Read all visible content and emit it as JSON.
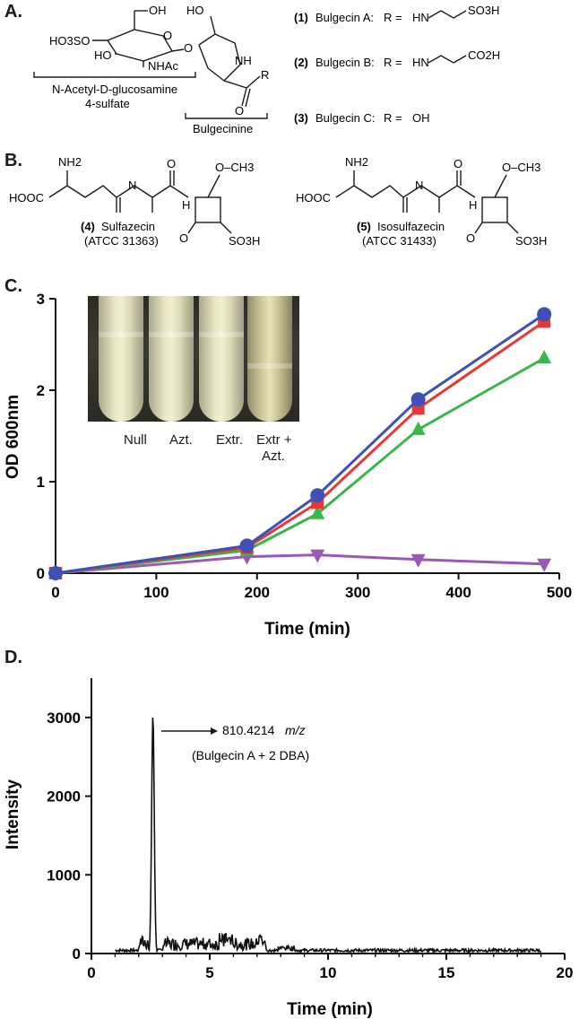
{
  "panels": {
    "a": "A.",
    "b": "B.",
    "c": "C.",
    "d": "D."
  },
  "panel_a": {
    "glc_left": "HO3SO",
    "glc_ho": "HO",
    "glc_oh": "OH",
    "glc_nhac": "NHAc",
    "ring_o": "O",
    "bridge_o": "O",
    "bulg_oh": "HO",
    "bulg_nh": "NH",
    "bulg_r": "R",
    "bulg_o": "O",
    "glc_caption_1": "N-Acetyl-D-glucosamine",
    "glc_caption_2": "4-sulfate",
    "bulg_caption": "Bulgecinine",
    "compounds": [
      {
        "num": "(1)",
        "name": "Bulgecin A:",
        "r": "R =",
        "group": "HN",
        "tail": "SO3H"
      },
      {
        "num": "(2)",
        "name": "Bulgecin B:",
        "r": "R =",
        "group": "HN",
        "tail": "CO2H"
      },
      {
        "num": "(3)",
        "name": "Bulgecin C:",
        "r": "R =",
        "group": "OH",
        "tail": ""
      }
    ]
  },
  "panel_b": {
    "sulfazecin_num": "(4)",
    "sulfazecin_name": "Sulfazecin",
    "sulfazecin_atcc": "(ATCC 31363)",
    "isosulfazecin_num": "(5)",
    "isosulfazecin_name": "Isosulfazecin",
    "isosulfazecin_atcc": "(ATCC 31433)",
    "nh2": "NH2",
    "hooc": "HOOC",
    "och3": "O–CH3",
    "nh": "N",
    "h": "H",
    "o": "O",
    "so3h": "SO3H"
  },
  "photo_labels": [
    "Null",
    "Azt.",
    "Extr.",
    "Extr +",
    "Azt."
  ],
  "chart_data": [
    {
      "type": "line",
      "xlabel": "Time (min)",
      "ylabel": "OD 600nm",
      "xlim": [
        0,
        500
      ],
      "ylim": [
        0,
        3
      ],
      "xticks": [
        0,
        100,
        200,
        300,
        400,
        500
      ],
      "yticks": [
        0,
        1,
        2,
        3
      ],
      "x": [
        0,
        190,
        260,
        360,
        485
      ],
      "series": [
        {
          "marker": "circle",
          "color": "#3f51b5",
          "values": [
            0.0,
            0.3,
            0.85,
            1.9,
            2.83
          ]
        },
        {
          "marker": "square",
          "color": "#e53935",
          "values": [
            0.0,
            0.28,
            0.77,
            1.8,
            2.75
          ]
        },
        {
          "marker": "triangle-up",
          "color": "#3cb54a",
          "values": [
            0.0,
            0.25,
            0.65,
            1.57,
            2.35
          ]
        },
        {
          "marker": "triangle-down",
          "color": "#9b59b6",
          "values": [
            0.0,
            0.18,
            0.2,
            0.15,
            0.1
          ]
        }
      ]
    },
    {
      "type": "line",
      "xlabel": "Time (min)",
      "ylabel": "Intensity",
      "xlim": [
        0,
        20
      ],
      "ylim": [
        0,
        3500
      ],
      "xticks": [
        0,
        5,
        10,
        15,
        20
      ],
      "yticks": [
        0,
        1000,
        2000,
        3000
      ],
      "annotation_mz": "810.4214",
      "annotation_unit": "m/z",
      "annotation_note": "(Bulgecin A + 2 DBA)",
      "peak_x": 2.6,
      "peak_y": 3050,
      "trace_color": "#111111"
    }
  ]
}
